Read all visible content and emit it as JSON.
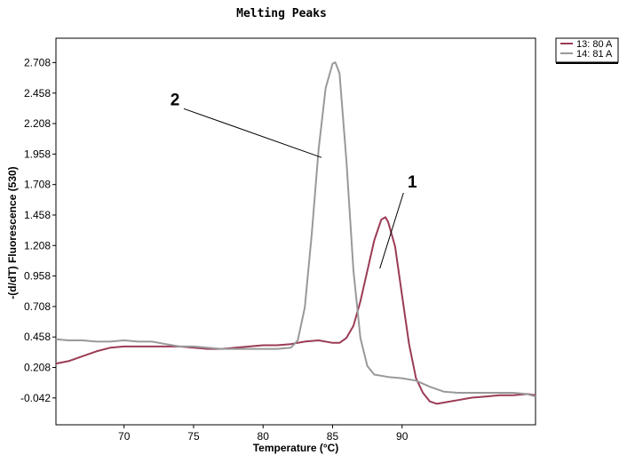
{
  "chart_data": {
    "type": "line",
    "title": "Melting Peaks",
    "xlabel": "Temperature (°C)",
    "ylabel": "-(d/dT) Fluorescence (530)",
    "xlim": [
      65.1,
      99.6
    ],
    "ylim": [
      -0.262,
      2.908
    ],
    "x_ticks": [
      70,
      75,
      80,
      85,
      90
    ],
    "y_ticks": [
      -0.042,
      0.208,
      0.458,
      0.708,
      0.958,
      1.208,
      1.458,
      1.708,
      1.958,
      2.208,
      2.458,
      2.708
    ],
    "y_tick_labels": [
      "-0.042",
      "0.208",
      "0.458",
      "0.708",
      "0.958",
      "1.208",
      "1.458",
      "1.708",
      "1.958",
      "2.208",
      "2.458",
      "2.708"
    ],
    "grid": false,
    "legend_position": "top-right",
    "series": [
      {
        "name": "13: 80 A",
        "color": "#9b3b55",
        "x": [
          65.1,
          66.0,
          67.0,
          68.0,
          69.0,
          70.0,
          71.0,
          72.0,
          73.0,
          74.0,
          75.0,
          76.0,
          77.0,
          78.0,
          79.0,
          80.0,
          81.0,
          82.0,
          83.0,
          84.0,
          85.0,
          85.5,
          86.0,
          86.5,
          87.0,
          87.5,
          88.0,
          88.5,
          88.8,
          89.0,
          89.5,
          90.0,
          90.5,
          91.0,
          91.5,
          92.0,
          92.5,
          93.0,
          94.0,
          95.0,
          96.0,
          97.0,
          98.0,
          99.0,
          99.6
        ],
        "y": [
          0.24,
          0.26,
          0.3,
          0.34,
          0.37,
          0.38,
          0.38,
          0.38,
          0.38,
          0.38,
          0.37,
          0.36,
          0.36,
          0.37,
          0.38,
          0.39,
          0.39,
          0.4,
          0.42,
          0.43,
          0.41,
          0.41,
          0.45,
          0.55,
          0.75,
          1.0,
          1.25,
          1.42,
          1.44,
          1.4,
          1.2,
          0.8,
          0.4,
          0.12,
          0.0,
          -0.07,
          -0.09,
          -0.08,
          -0.06,
          -0.04,
          -0.03,
          -0.02,
          -0.02,
          -0.01,
          -0.02
        ]
      },
      {
        "name": "14: 81 A",
        "color": "#999999",
        "x": [
          65.1,
          66.0,
          67.0,
          68.0,
          69.0,
          70.0,
          71.0,
          72.0,
          73.0,
          74.0,
          75.0,
          76.0,
          77.0,
          78.0,
          79.0,
          80.0,
          81.0,
          82.0,
          82.5,
          83.0,
          83.5,
          84.0,
          84.5,
          85.0,
          85.2,
          85.5,
          86.0,
          86.5,
          87.0,
          87.5,
          88.0,
          89.0,
          90.0,
          91.0,
          92.0,
          93.0,
          94.0,
          95.0,
          96.0,
          97.0,
          98.0,
          99.0,
          99.6
        ],
        "y": [
          0.44,
          0.43,
          0.43,
          0.42,
          0.42,
          0.43,
          0.42,
          0.42,
          0.4,
          0.38,
          0.38,
          0.37,
          0.36,
          0.36,
          0.36,
          0.36,
          0.36,
          0.37,
          0.43,
          0.7,
          1.3,
          2.0,
          2.5,
          2.7,
          2.71,
          2.62,
          1.9,
          1.0,
          0.45,
          0.22,
          0.15,
          0.13,
          0.12,
          0.1,
          0.05,
          0.01,
          0.0,
          0.0,
          0.0,
          0.0,
          0.0,
          -0.01,
          -0.03
        ]
      }
    ],
    "annotations": [
      {
        "text": "1",
        "from": [
          88.4,
          1.02
        ],
        "to": [
          90.1,
          1.64
        ]
      },
      {
        "text": "2",
        "from": [
          84.2,
          1.93
        ],
        "to": [
          74.3,
          2.33
        ]
      }
    ]
  }
}
